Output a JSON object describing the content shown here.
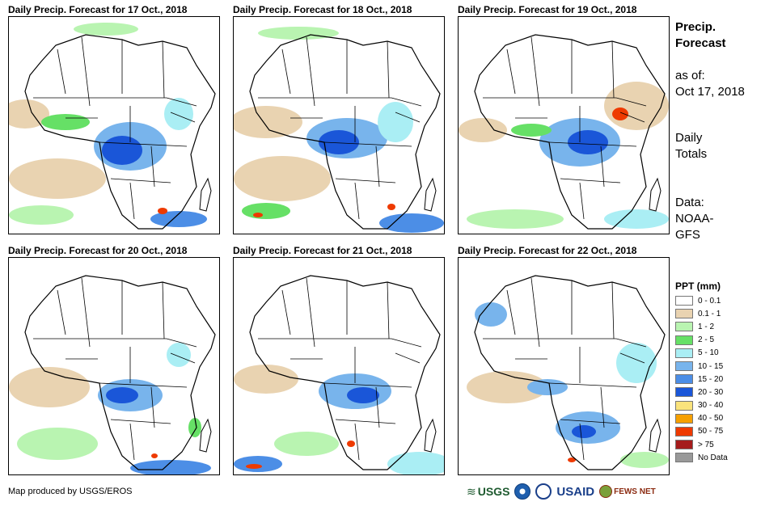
{
  "panels": [
    {
      "title": "Daily Precip. Forecast for 17 Oct., 2018"
    },
    {
      "title": "Daily Precip. Forecast for 18 Oct., 2018"
    },
    {
      "title": "Daily Precip. Forecast for 19 Oct., 2018"
    },
    {
      "title": "Daily Precip. Forecast for 20 Oct., 2018"
    },
    {
      "title": "Daily Precip. Forecast for 21 Oct., 2018"
    },
    {
      "title": "Daily Precip. Forecast for 22 Oct., 2018"
    }
  ],
  "sidebar": {
    "title_line1": "Precip.",
    "title_line2": "Forecast",
    "asof_label": "as of:",
    "asof_date": "Oct 17, 2018",
    "totals_line1": "Daily",
    "totals_line2": "Totals",
    "data_label": "Data:",
    "data_source_line1": "NOAA-",
    "data_source_line2": "GFS"
  },
  "legend": {
    "title": "PPT (mm)",
    "items": [
      {
        "label": "0 - 0.1",
        "color": "#ffffff"
      },
      {
        "label": "0.1 - 1",
        "color": "#e9d3b1"
      },
      {
        "label": "1 - 2",
        "color": "#b9f4b1"
      },
      {
        "label": "2 - 5",
        "color": "#66e066"
      },
      {
        "label": "5 - 10",
        "color": "#aaeef4"
      },
      {
        "label": "10 - 15",
        "color": "#78b4ec"
      },
      {
        "label": "15 - 20",
        "color": "#4c8ee6"
      },
      {
        "label": "20 - 30",
        "color": "#1a56d8"
      },
      {
        "label": "30 - 40",
        "color": "#fae37c"
      },
      {
        "label": "40 - 50",
        "color": "#f6a000"
      },
      {
        "label": "50 - 75",
        "color": "#ee3a00"
      },
      {
        "label": "> 75",
        "color": "#a51c1c"
      },
      {
        "label": "No Data",
        "color": "#999999"
      }
    ]
  },
  "credit": "Map produced by USGS/EROS",
  "logos": {
    "usgs": "USGS",
    "usaid": "USAID",
    "fews": "FEWS NET"
  }
}
